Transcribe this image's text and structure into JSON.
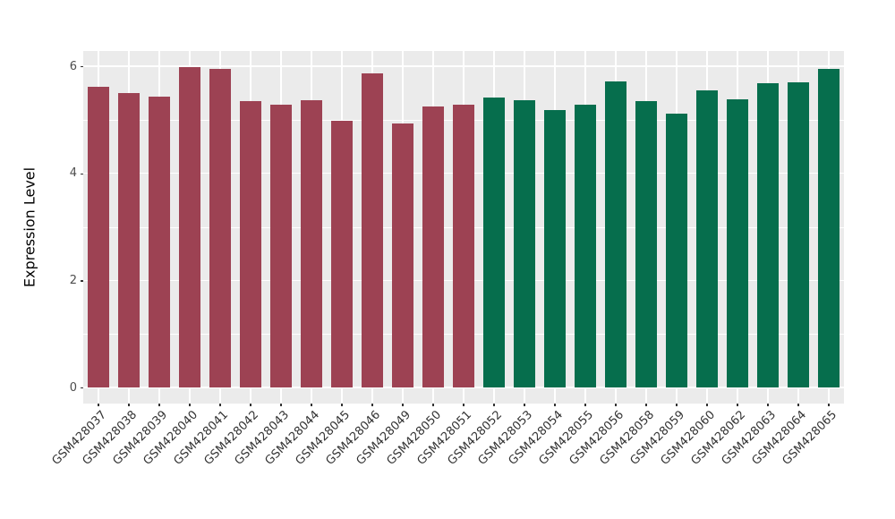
{
  "figure": {
    "background": "#FFFFFF",
    "panel_background": "#EBEBEB",
    "gridline_color": "#FFFFFF",
    "axis_text_color": "#4D4D4D",
    "group_colors": {
      "red": "#9D4253",
      "green": "#066E4D"
    }
  },
  "chart_data": {
    "type": "bar",
    "title": "",
    "xlabel": "",
    "ylabel": "Expression Level",
    "ylim": [
      0,
      6.29
    ],
    "yticks": [
      0,
      2,
      4,
      6
    ],
    "yticks_minor": [
      1,
      3,
      5
    ],
    "grid": "major-and-minor, white on grey panel",
    "legend": "none",
    "x_tick_rotation_deg": 45,
    "categories": [
      "GSM428037",
      "GSM428038",
      "GSM428039",
      "GSM428040",
      "GSM428041",
      "GSM428042",
      "GSM428043",
      "GSM428044",
      "GSM428045",
      "GSM428046",
      "GSM428049",
      "GSM428050",
      "GSM428051",
      "GSM428052",
      "GSM428053",
      "GSM428054",
      "GSM428055",
      "GSM428056",
      "GSM428058",
      "GSM428059",
      "GSM428060",
      "GSM428062",
      "GSM428063",
      "GSM428064",
      "GSM428065"
    ],
    "values": [
      5.62,
      5.5,
      5.43,
      5.98,
      5.95,
      5.35,
      5.28,
      5.36,
      4.98,
      5.87,
      4.93,
      5.25,
      5.28,
      5.42,
      5.37,
      5.18,
      5.28,
      5.72,
      5.35,
      5.11,
      5.55,
      5.38,
      5.68,
      5.7,
      5.95
    ],
    "bar_colors": [
      "#9D4253",
      "#9D4253",
      "#9D4253",
      "#9D4253",
      "#9D4253",
      "#9D4253",
      "#9D4253",
      "#9D4253",
      "#9D4253",
      "#9D4253",
      "#9D4253",
      "#9D4253",
      "#9D4253",
      "#066E4D",
      "#066E4D",
      "#066E4D",
      "#066E4D",
      "#066E4D",
      "#066E4D",
      "#066E4D",
      "#066E4D",
      "#066E4D",
      "#066E4D",
      "#066E4D",
      "#066E4D"
    ]
  }
}
